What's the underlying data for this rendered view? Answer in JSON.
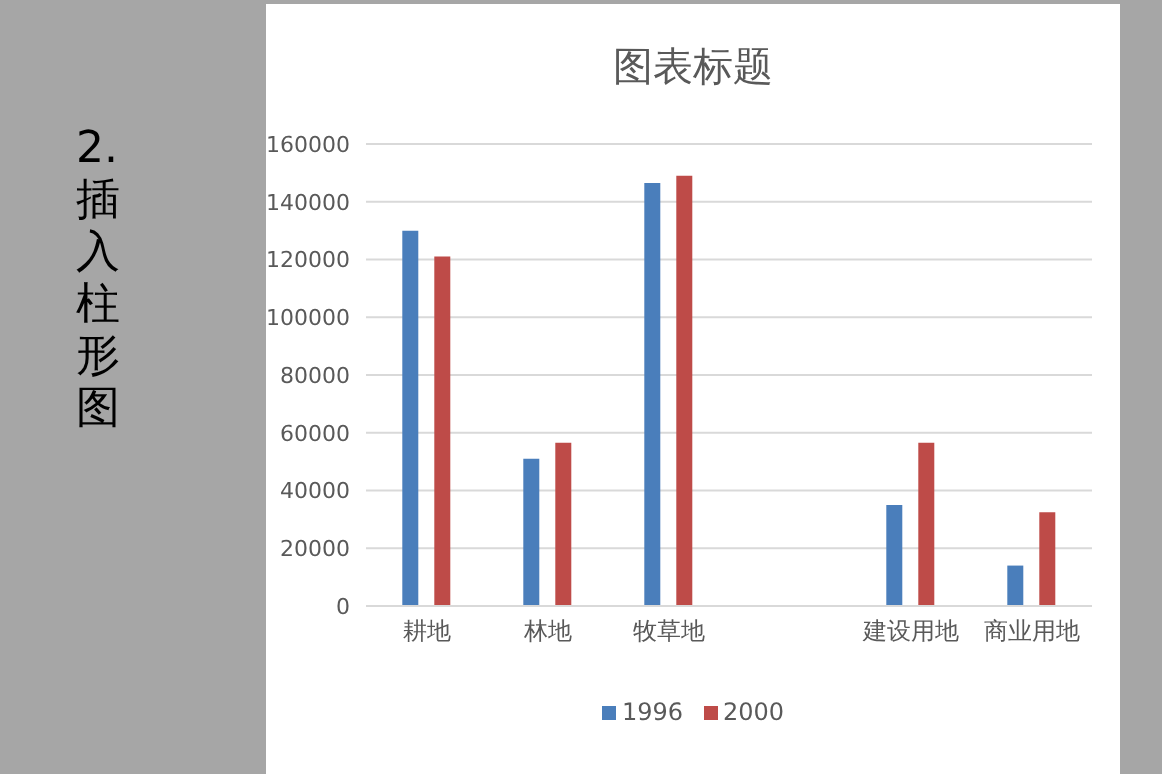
{
  "chart_data": {
    "type": "bar",
    "title": "图表标题",
    "categories": [
      "耕地",
      "林地",
      "牧草地",
      null,
      "建设用地",
      "商业用地"
    ],
    "series": [
      {
        "name": "1996",
        "color": "#4a7ebb",
        "values": [
          130000,
          51000,
          146500,
          null,
          35000,
          14000
        ]
      },
      {
        "name": "2000",
        "color": "#be4b48",
        "values": [
          121000,
          56500,
          149000,
          null,
          56500,
          32500
        ]
      }
    ],
    "ylim": [
      0,
      160000
    ],
    "yticks": [
      0,
      20000,
      40000,
      60000,
      80000,
      100000,
      120000,
      140000,
      160000
    ],
    "grid": "y",
    "legend": "bottom",
    "annotations": [
      "2. 插入柱形图"
    ]
  }
}
